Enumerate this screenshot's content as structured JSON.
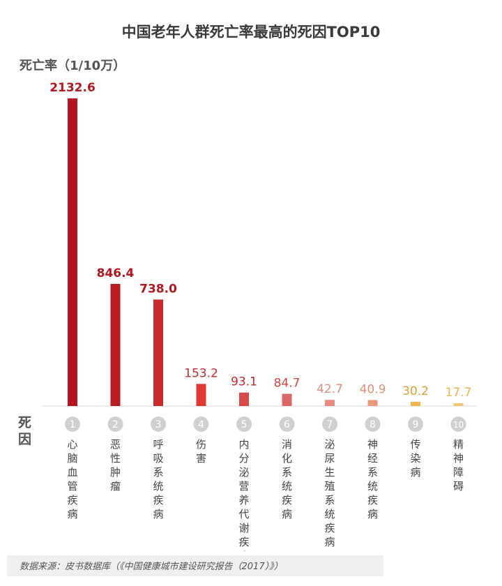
{
  "title": "中国老年人群死亡率最高的死因TOP10",
  "ylabel": "死亡率（1/10万）",
  "xaxis_label": "死因",
  "source": "数据来源：皮书数据库（《中国健康城市建设研究报告（2017）》）",
  "chart_data": {
    "type": "bar",
    "title": "中国老年人群死亡率最高的死因TOP10",
    "ylabel": "死亡率（1/10万）",
    "xlabel": "死因",
    "ylim": [
      0,
      2200
    ],
    "grid": false,
    "categories": [
      "心脑血管疾病",
      "恶性肿瘤",
      "呼吸系统疾病",
      "伤害",
      "内分泌营养代谢疾病",
      "消化系统疾病",
      "泌尿生殖系统疾病",
      "神经系统疾病",
      "传染病",
      "精神障碍"
    ],
    "ranks": [
      "1",
      "2",
      "3",
      "4",
      "5",
      "6",
      "7",
      "8",
      "9",
      "10"
    ],
    "values": [
      2132.6,
      846.4,
      738.0,
      153.2,
      93.1,
      84.7,
      42.7,
      40.9,
      30.2,
      17.7
    ],
    "value_labels": [
      "2132.6",
      "846.4",
      "738.0",
      "153.2",
      "93.1",
      "84.7",
      "42.7",
      "40.9",
      "30.2",
      "17.7"
    ],
    "colors": [
      "#b3161e",
      "#b81c22",
      "#c62a2a",
      "#dd3a32",
      "#d8474a",
      "#d9676a",
      "#e58d80",
      "#e89a78",
      "#ecb650",
      "#f0c870"
    ],
    "label_colors": [
      "#b3161e",
      "#b3161e",
      "#b3161e",
      "#c62a2a",
      "#c62a2a",
      "#c9474a",
      "#e08a80",
      "#e0906f",
      "#e0a030",
      "#e8b850"
    ]
  }
}
